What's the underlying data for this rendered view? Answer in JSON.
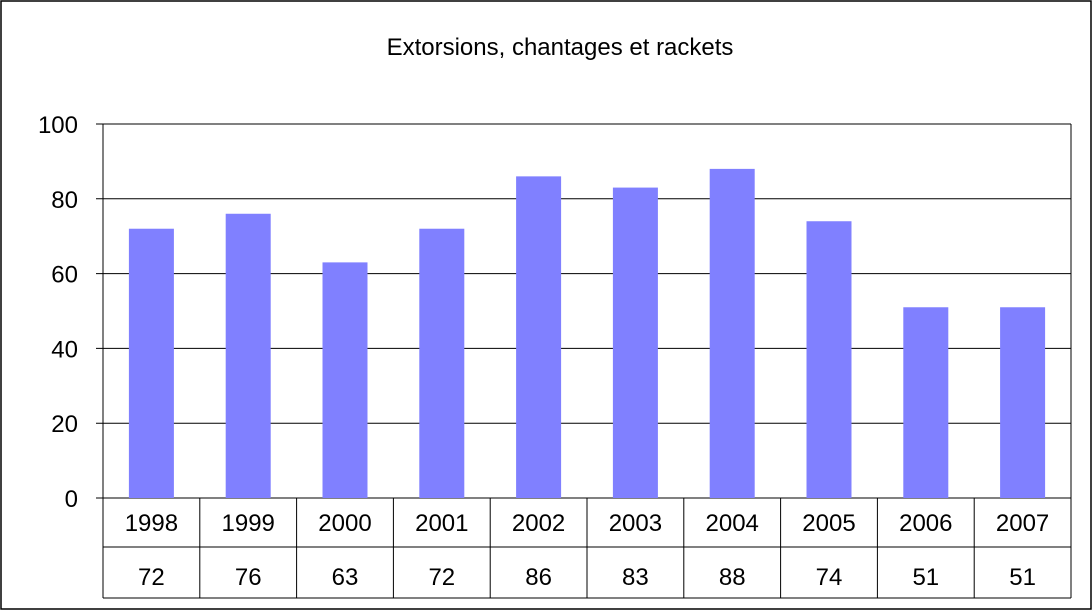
{
  "chart_data": {
    "type": "bar",
    "title": "Extorsions, chantages et rackets",
    "categories": [
      "1998",
      "1999",
      "2000",
      "2001",
      "2002",
      "2003",
      "2004",
      "2005",
      "2006",
      "2007"
    ],
    "series": [
      {
        "values": [
          72,
          76,
          63,
          72,
          86,
          83,
          88,
          74,
          51,
          51
        ]
      }
    ],
    "data_table_values": [
      "72",
      "76",
      "63",
      "72",
      "86",
      "83",
      "88",
      "74",
      "51",
      "51"
    ],
    "ylim": [
      0,
      100
    ],
    "yticks": [
      "0",
      "20",
      "40",
      "60",
      "80",
      "100"
    ],
    "grid": true,
    "legend": "none",
    "bar_color": "#8080FF"
  }
}
